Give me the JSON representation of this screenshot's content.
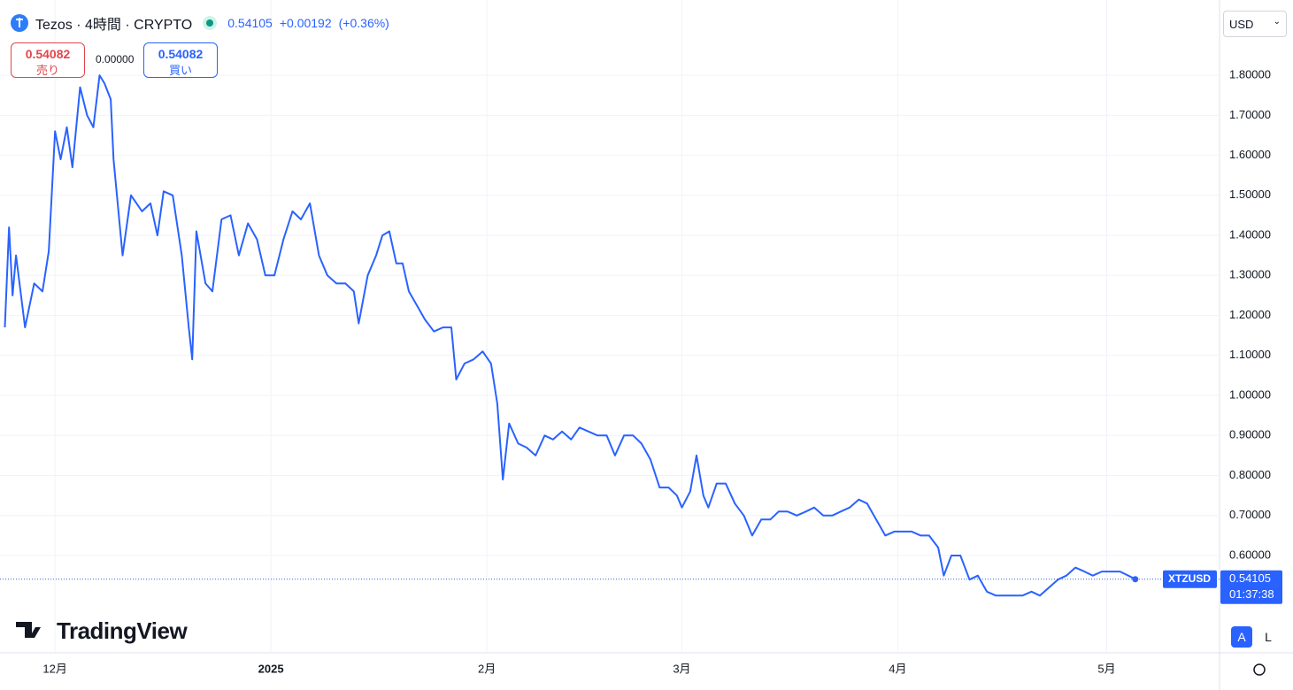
{
  "header": {
    "symbol": "Tezos · 4時間 · CRYPTO",
    "price": "0.54105",
    "change": "+0.00192",
    "change_pct": "(+0.36%)",
    "sell_price": "0.54082",
    "sell_label": "売り",
    "spread": "0.00000",
    "buy_price": "0.54082",
    "buy_label": "買い",
    "currency": "USD",
    "brand": "TradingView",
    "auto_button": "A",
    "log_button": "L"
  },
  "chart_data": {
    "type": "line",
    "color": "#2962ff",
    "grid": true,
    "x": [
      -7.2,
      -6.6,
      -6.1,
      -5.6,
      -4.3,
      -3.0,
      -1.8,
      -0.9,
      0,
      0.8,
      1.7,
      2.5,
      3.6,
      4.6,
      5.5,
      6.4,
      7.1,
      8.0,
      8.4,
      9.7,
      10.9,
      12.5,
      13.7,
      14.7,
      15.6,
      16.9,
      18.2,
      19.2,
      19.7,
      20.3,
      21.6,
      22.6,
      23.9,
      25.2,
      26.4,
      27.7,
      29.0,
      30.2,
      31.5,
      32.8,
      34.1,
      35.3,
      36.6,
      37.9,
      39.1,
      40.4,
      41.7,
      42.9,
      43.6,
      44.9,
      46.1,
      47.0,
      48.0,
      49.0,
      49.9,
      50.8,
      51.8,
      53.1,
      54.4,
      55.7,
      56.9,
      57.6,
      58.8,
      60.1,
      61.4,
      62.6,
      63.5,
      64.3,
      65.2,
      66.5,
      67.7,
      69.0,
      70.3,
      71.5,
      72.8,
      74.1,
      75.3,
      76.6,
      77.9,
      79.2,
      80.4,
      81.7,
      83.0,
      84.2,
      85.5,
      86.8,
      88.1,
      89.3,
      90.0,
      91.2,
      92.1,
      93.1,
      93.8,
      95.0,
      96.3,
      97.6,
      98.9,
      100.1,
      101.4,
      102.7,
      103.9,
      105.2,
      106.5,
      107.8,
      109.0,
      110.3,
      111.6,
      112.8,
      114.1,
      115.4,
      116.6,
      117.9,
      119.2,
      120.5,
      121.7,
      123.0,
      124.3,
      125.5,
      126.8,
      127.6,
      128.7,
      130.0,
      131.3,
      132.5,
      133.8,
      135.1,
      136.3,
      137.6,
      138.9,
      140.2,
      141.4,
      142.7,
      144.0,
      145.2,
      146.5,
      147.8,
      149.0,
      150.3,
      151.6,
      152.9,
      154.1,
      155.1
    ],
    "values": [
      1.17,
      1.42,
      1.25,
      1.35,
      1.17,
      1.28,
      1.26,
      1.36,
      1.66,
      1.59,
      1.67,
      1.57,
      1.77,
      1.7,
      1.67,
      1.8,
      1.78,
      1.74,
      1.59,
      1.35,
      1.5,
      1.46,
      1.48,
      1.4,
      1.51,
      1.5,
      1.35,
      1.17,
      1.09,
      1.41,
      1.28,
      1.26,
      1.44,
      1.45,
      1.35,
      1.43,
      1.39,
      1.3,
      1.3,
      1.39,
      1.46,
      1.44,
      1.48,
      1.35,
      1.3,
      1.28,
      1.28,
      1.26,
      1.18,
      1.3,
      1.35,
      1.4,
      1.41,
      1.33,
      1.33,
      1.26,
      1.23,
      1.19,
      1.16,
      1.17,
      1.17,
      1.04,
      1.08,
      1.09,
      1.11,
      1.08,
      0.98,
      0.79,
      0.93,
      0.88,
      0.87,
      0.85,
      0.9,
      0.89,
      0.91,
      0.89,
      0.92,
      0.91,
      0.9,
      0.9,
      0.85,
      0.9,
      0.9,
      0.88,
      0.84,
      0.77,
      0.77,
      0.75,
      0.72,
      0.76,
      0.85,
      0.75,
      0.72,
      0.78,
      0.78,
      0.73,
      0.7,
      0.65,
      0.69,
      0.69,
      0.71,
      0.71,
      0.7,
      0.71,
      0.72,
      0.7,
      0.7,
      0.71,
      0.72,
      0.74,
      0.73,
      0.69,
      0.65,
      0.66,
      0.66,
      0.66,
      0.65,
      0.65,
      0.62,
      0.55,
      0.6,
      0.6,
      0.54,
      0.55,
      0.51,
      0.5,
      0.5,
      0.5,
      0.5,
      0.51,
      0.5,
      0.52,
      0.54,
      0.55,
      0.57,
      0.56,
      0.55,
      0.56,
      0.56,
      0.56,
      0.55,
      0.54105
    ],
    "xlim": [
      -7.9,
      167.2
    ],
    "xticks": [
      {
        "value": 0,
        "label": "12月"
      },
      {
        "value": 31,
        "label": "2025"
      },
      {
        "value": 62,
        "label": "2月"
      },
      {
        "value": 90,
        "label": "3月"
      },
      {
        "value": 121,
        "label": "4月"
      },
      {
        "value": 151,
        "label": "5月"
      }
    ],
    "ylim": [
      0.357,
      1.988
    ],
    "yticks": [
      {
        "value": 0.6,
        "label": "0.60000"
      },
      {
        "value": 0.7,
        "label": "0.70000"
      },
      {
        "value": 0.8,
        "label": "0.80000"
      },
      {
        "value": 0.9,
        "label": "0.90000"
      },
      {
        "value": 1.0,
        "label": "1.00000"
      },
      {
        "value": 1.1,
        "label": "1.10000"
      },
      {
        "value": 1.2,
        "label": "1.20000"
      },
      {
        "value": 1.3,
        "label": "1.30000"
      },
      {
        "value": 1.4,
        "label": "1.40000"
      },
      {
        "value": 1.5,
        "label": "1.50000"
      },
      {
        "value": 1.6,
        "label": "1.60000"
      },
      {
        "value": 1.7,
        "label": "1.70000"
      },
      {
        "value": 1.8,
        "label": "1.80000"
      }
    ],
    "last_symbol": "XTZUSD",
    "last_value": 0.54105,
    "countdown": "01:37:38"
  }
}
